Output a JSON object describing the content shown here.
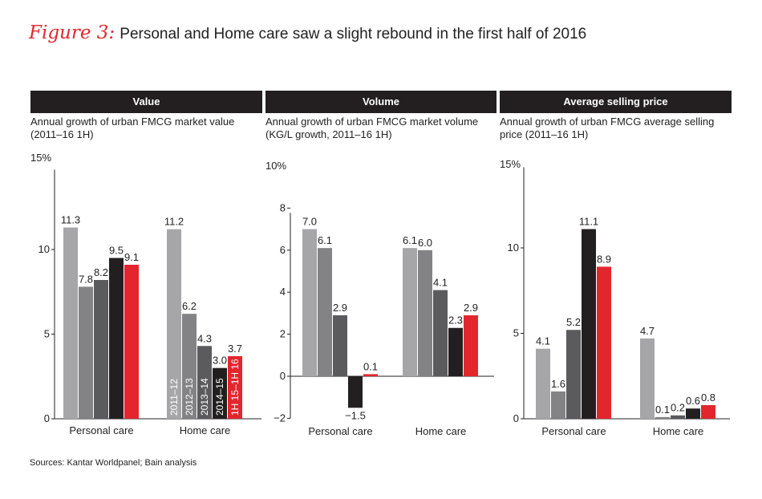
{
  "figure": {
    "label": "Figure 3:",
    "title": "Personal and Home care saw a slight rebound in the first half of 2016"
  },
  "source": "Sources: Kantar Worldpanel; Bain analysis",
  "colors": [
    "#a6a6a8",
    "#838385",
    "#5b5b5d",
    "#231f20",
    "#e3262d"
  ],
  "chart_data": [
    {
      "type": "bar",
      "header": "Value",
      "subtitle": [
        "Annual growth of urban FMCG market value",
        "(2011–16 1H)"
      ],
      "ylabel": "15%",
      "ylim": [
        0,
        15
      ],
      "yticks": [
        "0",
        "5",
        "10"
      ],
      "categories": [
        "Personal care",
        "Home care"
      ],
      "series": [
        {
          "name": "2011–12",
          "values": [
            11.3,
            11.2
          ]
        },
        {
          "name": "2012–13",
          "values": [
            7.8,
            6.2
          ]
        },
        {
          "name": "2013–14",
          "values": [
            8.2,
            4.3
          ]
        },
        {
          "name": "2014–15",
          "values": [
            9.5,
            3.0
          ]
        },
        {
          "name": "1H 15–1H 16",
          "values": [
            9.1,
            3.7
          ]
        }
      ],
      "value_labels": [
        [
          "11.3",
          "7.8",
          "8.2",
          "9.5",
          "9.1"
        ],
        [
          "11.2",
          "6.2",
          "4.3",
          "3.0",
          "3.7"
        ]
      ],
      "in_bar_series_labels": true
    },
    {
      "type": "bar",
      "header": "Volume",
      "subtitle": [
        "Annual growth of urban FMCG market volume",
        "(KG/L growth, 2011–16 1H)"
      ],
      "ylabel": "10%",
      "ylim": [
        -2,
        8
      ],
      "yticks": [
        "−2",
        "0",
        "2",
        "4",
        "6",
        "8"
      ],
      "categories": [
        "Personal care",
        "Home care"
      ],
      "series": [
        {
          "values": [
            7.0,
            6.1
          ]
        },
        {
          "values": [
            6.1,
            6.0
          ]
        },
        {
          "values": [
            2.9,
            4.1
          ]
        },
        {
          "values": [
            -1.5,
            2.3
          ]
        },
        {
          "values": [
            0.1,
            2.9
          ]
        }
      ],
      "value_labels": [
        [
          "7.0",
          "6.1",
          "2.9",
          "−1.5",
          "0.1"
        ],
        [
          "6.1",
          "6.0",
          "4.1",
          "2.3",
          "2.9"
        ]
      ]
    },
    {
      "type": "bar",
      "header": "Average selling price",
      "subtitle": [
        "Annual growth of urban FMCG average selling",
        "price (2011–16 1H)"
      ],
      "ylabel": "15%",
      "ylim": [
        0,
        15
      ],
      "yticks": [
        "0",
        "5",
        "10"
      ],
      "categories": [
        "Personal care",
        "Home care"
      ],
      "series": [
        {
          "values": [
            4.1,
            4.7
          ]
        },
        {
          "values": [
            1.6,
            0.1
          ]
        },
        {
          "values": [
            5.2,
            0.2
          ]
        },
        {
          "values": [
            11.1,
            0.6
          ]
        },
        {
          "values": [
            8.9,
            0.8
          ]
        }
      ],
      "value_labels": [
        [
          "4.1",
          "1.6",
          "5.2",
          "11.1",
          "8.9"
        ],
        [
          "4.7",
          "0.1",
          "0.2",
          "0.6",
          "0.8"
        ]
      ]
    }
  ]
}
